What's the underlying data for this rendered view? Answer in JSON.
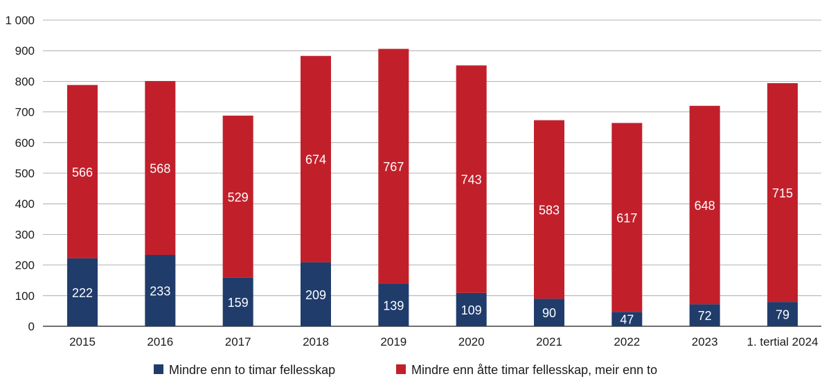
{
  "chart_data": {
    "type": "bar",
    "stacked": true,
    "categories": [
      "2015",
      "2016",
      "2017",
      "2018",
      "2019",
      "2020",
      "2021",
      "2022",
      "2023",
      "1. tertial 2024"
    ],
    "series": [
      {
        "name": "Mindre enn to timar fellesskap",
        "color": "#1f3c6b",
        "values": [
          222,
          233,
          159,
          209,
          139,
          109,
          90,
          47,
          72,
          79
        ]
      },
      {
        "name": "Mindre enn åtte timar fellesskap, meir enn to",
        "color": "#c1202b",
        "values": [
          566,
          568,
          529,
          674,
          767,
          743,
          583,
          617,
          648,
          715
        ]
      }
    ],
    "yticks": [
      "0",
      "100",
      "200",
      "300",
      "400",
      "500",
      "600",
      "700",
      "800",
      "900",
      "1 000"
    ],
    "ylim": [
      0,
      1000
    ],
    "grid": true,
    "legend": "bottom",
    "data_labels": true
  }
}
